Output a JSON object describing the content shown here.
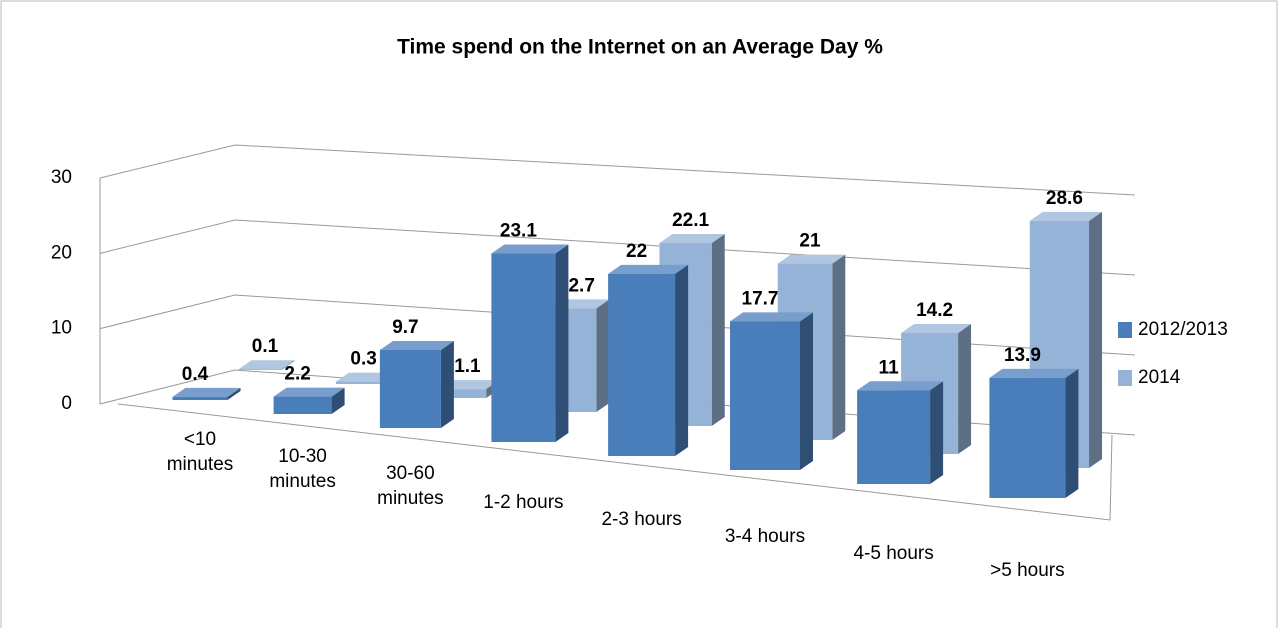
{
  "chart_data": {
    "type": "bar3d",
    "title": "Time spend on the Internet on an Average Day %",
    "categories": [
      "<10 minutes",
      "10-30 minutes",
      "30-60 minutes",
      "1-2 hours",
      "2-3 hours",
      "3-4 hours",
      "4-5 hours",
      ">5 hours"
    ],
    "series": [
      {
        "name": "2012/2013",
        "color": "#4a7ebb",
        "values": [
          0.4,
          2.2,
          9.7,
          23.1,
          22,
          17.7,
          11,
          13.9
        ]
      },
      {
        "name": "2014",
        "color": "#95b3d7",
        "values": [
          0.1,
          0.3,
          1.1,
          12.7,
          22.1,
          21,
          14.2,
          28.6
        ]
      }
    ],
    "ylim": [
      0,
      30
    ],
    "yticks": [
      0,
      10,
      20,
      30
    ],
    "grid": true,
    "legend": "right"
  }
}
